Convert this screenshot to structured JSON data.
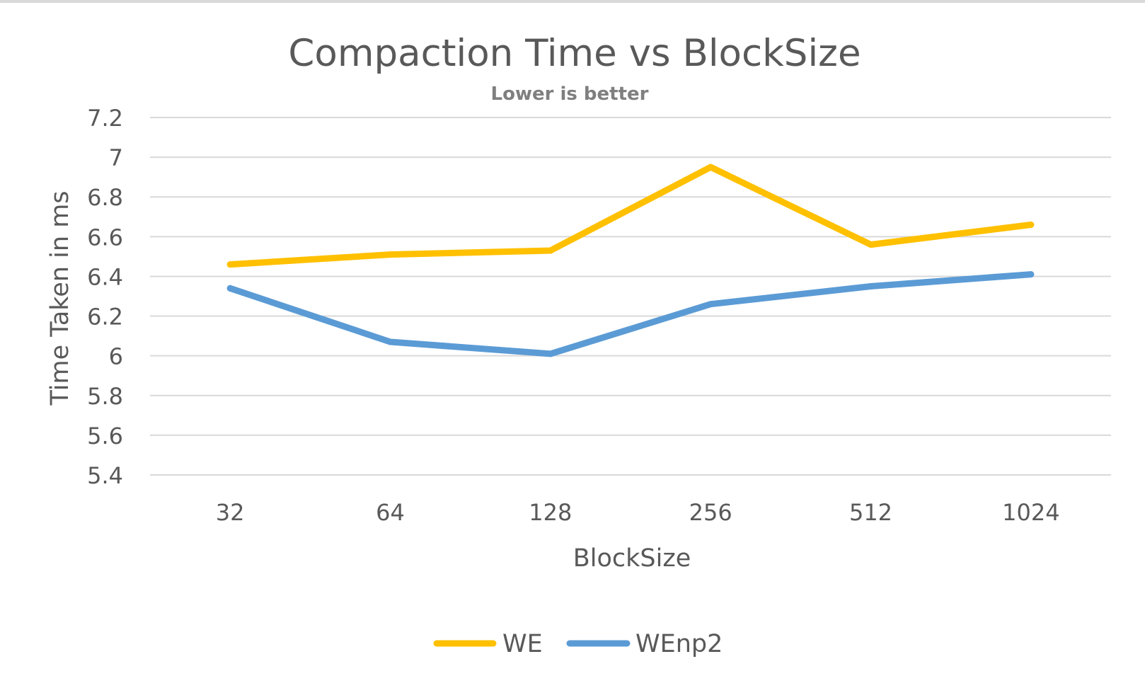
{
  "chart_data": {
    "type": "line",
    "title": "Compaction Time vs BlockSize",
    "subtitle": "Lower is better",
    "xlabel": "BlockSize",
    "ylabel": "Time Taken in ms",
    "categories": [
      "32",
      "64",
      "128",
      "256",
      "512",
      "1024"
    ],
    "yticks": [
      "5.4",
      "5.6",
      "5.8",
      "6",
      "6.2",
      "6.4",
      "6.6",
      "6.8",
      "7",
      "7.2"
    ],
    "ylim": [
      5.4,
      7.2
    ],
    "grid": true,
    "legend_position": "bottom",
    "series": [
      {
        "name": "WE",
        "color": "#FFC000",
        "values": [
          6.46,
          6.51,
          6.53,
          6.95,
          6.56,
          6.66
        ]
      },
      {
        "name": "WEnp2",
        "color": "#5B9BD5",
        "values": [
          6.34,
          6.07,
          6.01,
          6.26,
          6.35,
          6.41
        ]
      }
    ],
    "colors": {
      "grid": "#d9d9d9",
      "title": "#595959",
      "subtitle": "#7f7f7f",
      "axis_text": "#595959"
    }
  }
}
